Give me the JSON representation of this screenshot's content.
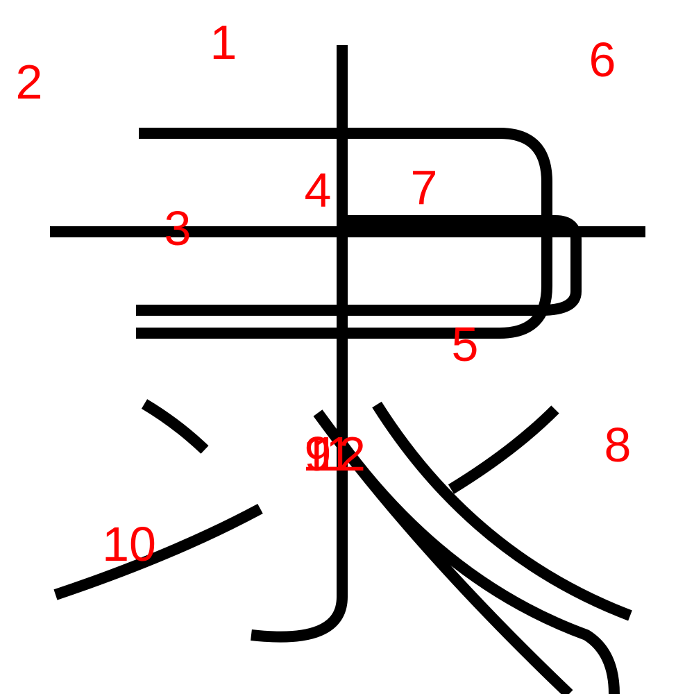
{
  "colors": {
    "stroke": "#000000",
    "label": "#ff0000",
    "background": "#ffffff"
  },
  "strokes": [
    {
      "label": "1"
    },
    {
      "label": "2"
    },
    {
      "label": "3"
    },
    {
      "label": "4"
    },
    {
      "label": "5"
    },
    {
      "label": "6"
    },
    {
      "label": "7"
    },
    {
      "label": "8"
    },
    {
      "label": "9"
    },
    {
      "label": "10"
    },
    {
      "label": "11"
    },
    {
      "label": "12"
    }
  ]
}
